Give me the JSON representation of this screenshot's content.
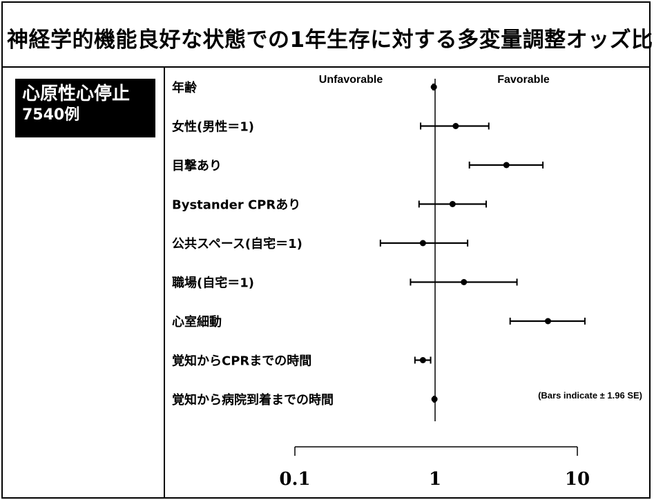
{
  "title": "神経学的機能良好な状態での1年生存に対する多変量調整オッズ比",
  "group": {
    "line1": "心原性心停止",
    "line2": "7540例"
  },
  "chart_data": {
    "type": "forest",
    "scale": "log",
    "xlim": [
      0.1,
      10
    ],
    "reference_line": 1,
    "tick_labels": [
      "0.1",
      "1",
      "10"
    ],
    "direction_labels": {
      "left": "Unfavorable",
      "right": "Favorable"
    },
    "note": "(Bars indicate ± 1.96 SE)",
    "rows": [
      {
        "label": "年齢",
        "or": 0.98,
        "lo": 0.97,
        "hi": 0.99
      },
      {
        "label": "女性(男性＝1)",
        "or": 1.4,
        "lo": 0.79,
        "hi": 2.4
      },
      {
        "label": "目撃あり",
        "or": 3.2,
        "lo": 1.75,
        "hi": 5.8
      },
      {
        "label": "Bystander CPRあり",
        "or": 1.33,
        "lo": 0.77,
        "hi": 2.3
      },
      {
        "label": "公共スペース(自宅＝1)",
        "or": 0.82,
        "lo": 0.41,
        "hi": 1.7
      },
      {
        "label": "職場(自宅＝1)",
        "or": 1.6,
        "lo": 0.67,
        "hi": 3.8
      },
      {
        "label": "心室細動",
        "or": 6.3,
        "lo": 3.4,
        "hi": 11.5
      },
      {
        "label": "覚知からCPRまでの時間",
        "or": 0.82,
        "lo": 0.72,
        "hi": 0.93
      },
      {
        "label": "覚知から病院到着までの時間",
        "or": 0.99,
        "lo": 0.98,
        "hi": 1.0
      }
    ]
  }
}
